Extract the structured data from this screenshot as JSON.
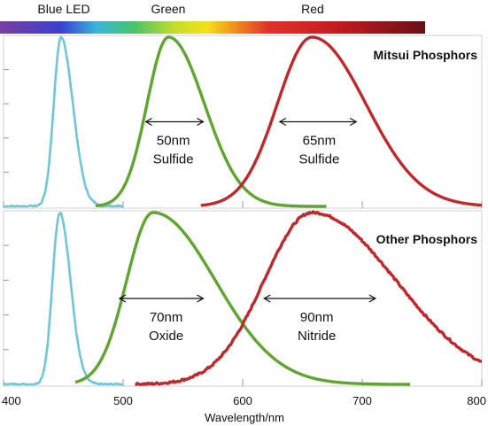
{
  "spectrum_bar": {
    "labels": [
      "Blue LED",
      "Green",
      "Red"
    ],
    "label_wavelengths": [
      450,
      540,
      650
    ],
    "range": [
      400,
      750
    ],
    "stops": [
      {
        "nm": 400,
        "color": "#7a3fa0"
      },
      {
        "nm": 450,
        "color": "#3a3fd0"
      },
      {
        "nm": 480,
        "color": "#3ab8d8"
      },
      {
        "nm": 510,
        "color": "#47c36a"
      },
      {
        "nm": 545,
        "color": "#c8dc28"
      },
      {
        "nm": 570,
        "color": "#f4e21a"
      },
      {
        "nm": 595,
        "color": "#f08a1c"
      },
      {
        "nm": 620,
        "color": "#e3322a"
      },
      {
        "nm": 680,
        "color": "#c21a20"
      },
      {
        "nm": 750,
        "color": "#6a0f16"
      }
    ]
  },
  "colors": {
    "blue_led": "#6fc7d6",
    "green": "#5fa52f",
    "red": "#c0282c",
    "grid": "#d0d0d0"
  },
  "chart_data": [
    {
      "type": "line",
      "title": "Mitsui Phosphors",
      "xlim": [
        400,
        800
      ],
      "ylim": [
        0,
        1
      ],
      "series": [
        {
          "key": "blue_led",
          "peak": 448,
          "width_l": 6,
          "width_r": 10,
          "range": [
            400,
            500
          ],
          "noise": true
        },
        {
          "key": "green",
          "peak": 538,
          "width_l": 18,
          "width_r": 30,
          "range": [
            477,
            670
          ],
          "noise": false
        },
        {
          "key": "red",
          "peak": 658,
          "width_l": 29,
          "width_r": 45,
          "range": [
            565,
            800
          ],
          "noise": false
        }
      ],
      "annotations": [
        {
          "from": 519,
          "to": 567,
          "level": 0.5,
          "value": "50nm",
          "name": "Sulfide",
          "center": 542
        },
        {
          "from": 631,
          "to": 695,
          "level": 0.5,
          "value": "65nm",
          "name": "Sulfide",
          "center": 664
        }
      ]
    },
    {
      "type": "line",
      "title": "Other Phosphors",
      "xlim": [
        400,
        800
      ],
      "ylim": [
        0,
        1
      ],
      "series": [
        {
          "key": "blue_led",
          "peak": 447,
          "width_l": 6,
          "width_r": 9,
          "range": [
            400,
            500
          ],
          "noise": true
        },
        {
          "key": "green",
          "peak": 525,
          "width_l": 22,
          "width_r": 52,
          "range": [
            460,
            740
          ],
          "noise": false
        },
        {
          "key": "red",
          "peak": 658,
          "width_l": 40,
          "width_r": 70,
          "range": [
            510,
            800
          ],
          "noise": true
        }
      ],
      "annotations": [
        {
          "from": 497,
          "to": 567,
          "level": 0.5,
          "value": "70nm",
          "name": "Oxide",
          "center": 536
        },
        {
          "from": 618,
          "to": 711,
          "level": 0.5,
          "value": "90nm",
          "name": "Nitride",
          "center": 662
        }
      ]
    }
  ],
  "x_axis": {
    "label": "Wavelength/nm",
    "ticks": [
      400,
      500,
      600,
      700,
      800
    ]
  }
}
